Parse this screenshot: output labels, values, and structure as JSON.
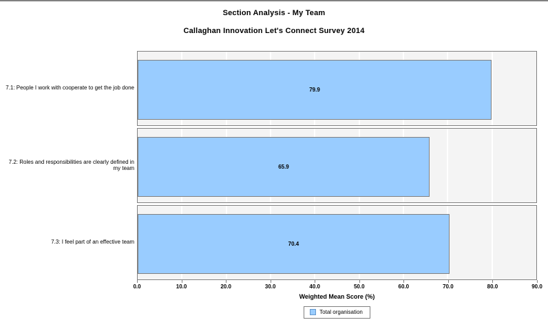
{
  "titles": {
    "line1": "Section Analysis - My Team",
    "line2": "Callaghan Innovation Let's Connect Survey 2014"
  },
  "chart_data": {
    "type": "bar",
    "orientation": "horizontal",
    "title": "Section Analysis - My Team",
    "subtitle": "Callaghan Innovation Let's Connect Survey 2014",
    "categories": [
      "7.1: People I work with cooperate to get the job done",
      "7.2: Roles and responsibilities are clearly defined in my team",
      "7.3: I feel part of an effective team"
    ],
    "series": [
      {
        "name": "Total organisation",
        "values": [
          79.9,
          65.9,
          70.4
        ]
      }
    ],
    "value_labels": [
      "79.9",
      "65.9",
      "70.4"
    ],
    "xlabel": "Weighted Mean Score (%)",
    "ylabel": "",
    "xlim": [
      0,
      90
    ],
    "xticks": [
      "0.0",
      "10.0",
      "20.0",
      "30.0",
      "40.0",
      "50.0",
      "60.0",
      "70.0",
      "80.0",
      "90.0"
    ],
    "grid": true,
    "legend_position": "bottom",
    "colors": {
      "bar_fill": "#99ccff",
      "bar_border": "#808080",
      "panel_background": "#f4f4f4",
      "panel_border": "#808080",
      "gridline": "#ffffff",
      "text": "#000000"
    }
  },
  "legend": {
    "label": "Total organisation"
  }
}
